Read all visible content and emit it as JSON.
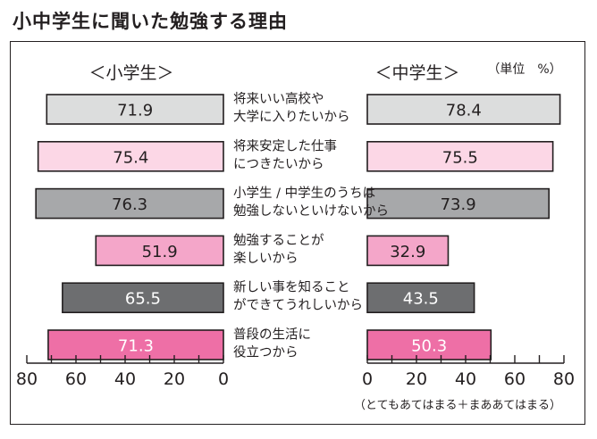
{
  "title": "小中学生に聞いた勉強する理由",
  "unit_label": "（単位　%）",
  "footnote": "（とてもあてはまる＋まああてはまる）",
  "chart_data": {
    "type": "bar",
    "orientation": "horizontal",
    "title": "小中学生に聞いた勉強する理由",
    "xlim": [
      0,
      80
    ],
    "ticks": [
      0,
      20,
      40,
      60,
      80
    ],
    "left_axis_direction": "reversed",
    "categories": [
      [
        "将来いい高校や",
        "大学に入りたいから"
      ],
      [
        "将来安定した仕事",
        "につきたいから"
      ],
      [
        "小学生 / 中学生のうちは",
        "勉強しないといけないから"
      ],
      [
        "勉強することが",
        "楽しいから"
      ],
      [
        "新しい事を知ること",
        "ができてうれしいから"
      ],
      [
        "普段の生活に",
        "役立つから"
      ]
    ],
    "series": [
      {
        "name": "＜小学生＞",
        "values": [
          71.9,
          75.4,
          76.3,
          51.9,
          65.5,
          71.3
        ]
      },
      {
        "name": "＜中学生＞",
        "values": [
          78.4,
          75.5,
          73.9,
          32.9,
          43.5,
          50.3
        ]
      }
    ],
    "bar_colors": [
      "#dcdddd",
      "#fcd7e6",
      "#a7a8aa",
      "#f4a6c9",
      "#6d6e70",
      "#ee6fa6"
    ],
    "value_label_colors": [
      "#231f20",
      "#231f20",
      "#231f20",
      "#231f20",
      "#ffffff",
      "#ffffff"
    ]
  }
}
